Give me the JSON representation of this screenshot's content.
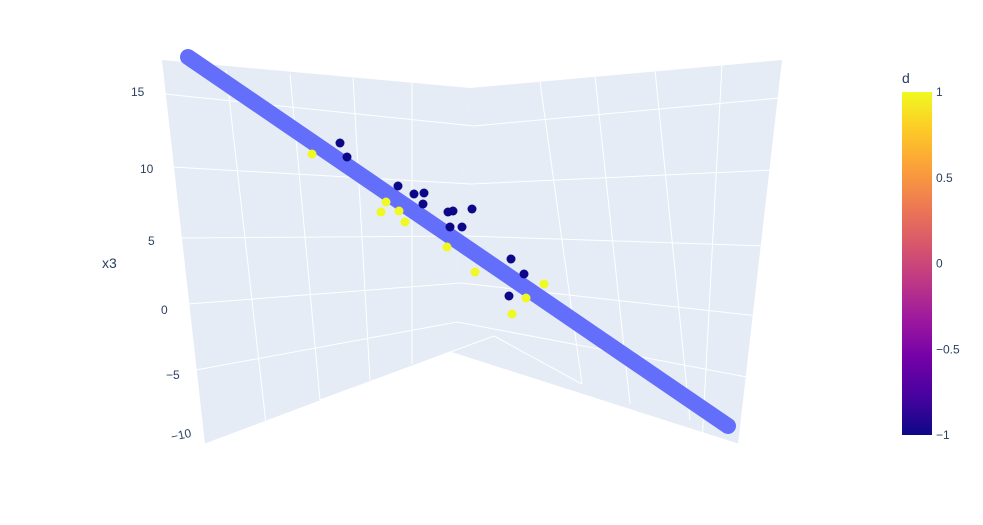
{
  "chart_data": {
    "type": "scatter3d",
    "axes": {
      "z": {
        "title": "x3",
        "tick_labels": [
          "15",
          "10",
          "5",
          "0",
          "−5",
          "−10"
        ]
      }
    },
    "colorbar": {
      "title": "d",
      "range": [
        -1,
        1
      ],
      "tick_labels": [
        "1",
        "0.5",
        "0",
        "−0.5",
        "−1"
      ],
      "colors": [
        "#0d0887",
        "#46039f",
        "#7201a8",
        "#9c179e",
        "#bd3786",
        "#d8576b",
        "#ed7953",
        "#fb9f3a",
        "#fdca26",
        "#f0f921"
      ]
    },
    "series": [
      {
        "kind": "line",
        "color": "#636efa",
        "z_range": [
          17,
          -10.3
        ]
      },
      {
        "kind": "markers",
        "points": [
          {
            "z": 11.5,
            "d": -1
          },
          {
            "z": 10.6,
            "d": -1
          },
          {
            "z": 10.8,
            "d": 1
          },
          {
            "z": 8.0,
            "d": -1
          },
          {
            "z": 7.4,
            "d": -1
          },
          {
            "z": 7.6,
            "d": -1
          },
          {
            "z": 6.8,
            "d": -1
          },
          {
            "z": 6.9,
            "d": 1
          },
          {
            "z": 6.2,
            "d": 1
          },
          {
            "z": 6.3,
            "d": 1
          },
          {
            "z": 5.7,
            "d": 1
          },
          {
            "z": 5.0,
            "d": 1
          },
          {
            "z": 6.1,
            "d": -1
          },
          {
            "z": 6.0,
            "d": -1
          },
          {
            "z": 6.1,
            "d": -1
          },
          {
            "z": 5.1,
            "d": -1
          },
          {
            "z": 4.9,
            "d": -1
          },
          {
            "z": 3.6,
            "d": 1
          },
          {
            "z": 1.9,
            "d": -1
          },
          {
            "z": 1.0,
            "d": -1
          },
          {
            "z": 0.9,
            "d": 1
          },
          {
            "z": 0.3,
            "d": -1
          },
          {
            "z": -0.6,
            "d": 1
          },
          {
            "z": -1.9,
            "d": 1
          }
        ]
      }
    ]
  }
}
